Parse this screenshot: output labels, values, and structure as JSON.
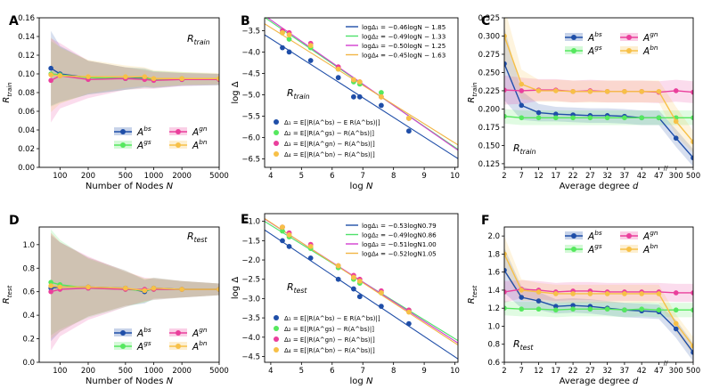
{
  "figure": {
    "title": "Six-panel comparison of R_train / R_test and log-Delta scaling"
  },
  "colors": {
    "bs": "#1f4ea8",
    "gs": "#55e85e",
    "gn": "#ea3f9c",
    "bn": "#f7c047",
    "fit1": "#1f4ea8",
    "fit2": "#4fe06b",
    "fit3": "#d23fd0",
    "fit4": "#f2b545"
  },
  "chart_data": [
    {
      "id": "A",
      "letter": "A",
      "type": "line",
      "title_label": "R",
      "title_sub": "train",
      "xlabel": "Number of Nodes N",
      "ylabel": "R",
      "ylabel_sub": "train",
      "xscale": "log",
      "xlim": [
        60,
        5000
      ],
      "ylim": [
        0,
        0.16
      ],
      "xticks": [
        100,
        200,
        500,
        1000,
        2000,
        5000
      ],
      "xtick_labels": [
        "100",
        "200",
        "500",
        "1000",
        "2000",
        "5000"
      ],
      "yticks": [
        0,
        0.02,
        0.04,
        0.06,
        0.08,
        0.1,
        0.12,
        0.14,
        0.16
      ],
      "ytick_labels": [
        "0.00",
        "0.02",
        "0.04",
        "0.06",
        "0.08",
        "0.10",
        "0.12",
        "0.14",
        "0.16"
      ],
      "x": [
        80,
        100,
        200,
        500,
        800,
        1000,
        2000,
        5000
      ],
      "series": [
        {
          "key": "bs",
          "name": "A",
          "sup": "bs",
          "values": [
            0.106,
            0.1,
            0.096,
            0.095,
            0.096,
            0.094,
            0.094,
            0.094
          ],
          "band": [
            0.04,
            0.03,
            0.018,
            0.012,
            0.01,
            0.009,
            0.007,
            0.006
          ]
        },
        {
          "key": "gs",
          "name": "A",
          "sup": "gs",
          "values": [
            0.1,
            0.099,
            0.096,
            0.095,
            0.095,
            0.094,
            0.095,
            0.094
          ],
          "band": [
            0.035,
            0.03,
            0.018,
            0.012,
            0.01,
            0.009,
            0.007,
            0.006
          ]
        },
        {
          "key": "gn",
          "name": "A",
          "sup": "gn",
          "values": [
            0.093,
            0.098,
            0.094,
            0.095,
            0.094,
            0.093,
            0.094,
            0.094
          ],
          "band": [
            0.045,
            0.035,
            0.02,
            0.012,
            0.01,
            0.009,
            0.007,
            0.006
          ]
        },
        {
          "key": "bn",
          "name": "A",
          "sup": "bn",
          "values": [
            0.099,
            0.098,
            0.097,
            0.097,
            0.097,
            0.095,
            0.095,
            0.095
          ],
          "band": [
            0.04,
            0.03,
            0.018,
            0.012,
            0.01,
            0.009,
            0.007,
            0.006
          ]
        }
      ],
      "legend_position": "bottom-right"
    },
    {
      "id": "B",
      "letter": "B",
      "type": "scatter",
      "title_label": "R",
      "title_sub": "train",
      "xlabel": "log N",
      "ylabel": "log Δ",
      "xlim": [
        3.8,
        10.1
      ],
      "ylim": [
        -6.7,
        -3.2
      ],
      "xticks": [
        4,
        5,
        6,
        7,
        8,
        9,
        10
      ],
      "xtick_labels": [
        "4",
        "5",
        "6",
        "7",
        "8",
        "9",
        "10"
      ],
      "yticks": [
        -6.5,
        -6,
        -5.5,
        -5,
        -4.5,
        -4,
        -3.5
      ],
      "ytick_labels": [
        "−6.5",
        "−6.0",
        "−5.5",
        "−5.0",
        "−4.5",
        "−4.0",
        "−3.5"
      ],
      "fits": [
        {
          "key": "fit1",
          "label": "logΔ₁ = −0.46logN − 1.85",
          "slope": -0.46,
          "intercept": -1.85
        },
        {
          "key": "fit2",
          "label": "logΔ₂ = −0.49logN − 1.33",
          "slope": -0.49,
          "intercept": -1.33
        },
        {
          "key": "fit3",
          "label": "logΔ₃ = −0.50logN − 1.25",
          "slope": -0.5,
          "intercept": -1.25
        },
        {
          "key": "fit4",
          "label": "logΔ₄ = −0.45logN − 1.63",
          "slope": -0.45,
          "intercept": -1.63
        }
      ],
      "points": [
        {
          "key": "bs",
          "label": "Δ₁ = E[|R(A^bs) − E R(A^bs)|]",
          "x": [
            4.38,
            4.6,
            5.3,
            6.2,
            6.7,
            6.9,
            7.6,
            8.5
          ],
          "y": [
            -3.9,
            -4.0,
            -4.2,
            -4.6,
            -5.05,
            -5.05,
            -5.25,
            -5.85
          ]
        },
        {
          "key": "gs",
          "label": "Δ₂ = E[|R(A^gs) − R(A^bs)|]",
          "x": [
            4.38,
            4.6,
            5.3,
            6.2,
            6.7,
            6.9,
            7.6,
            8.5
          ],
          "y": [
            -3.55,
            -3.7,
            -3.9,
            -4.4,
            -4.7,
            -4.75,
            -4.95,
            -5.55
          ]
        },
        {
          "key": "gn",
          "label": "Δ₃ = E[|R(A^gn) − R(A^bs)|]",
          "x": [
            4.38,
            4.6,
            5.3,
            6.2,
            6.7,
            6.9,
            7.6,
            8.5
          ],
          "y": [
            -3.5,
            -3.55,
            -3.8,
            -4.35,
            -4.65,
            -4.7,
            -5.05,
            -5.55
          ]
        },
        {
          "key": "bn",
          "label": "Δ₄ = E[|R(A^bn) − R(A^bs)|]",
          "x": [
            4.38,
            4.6,
            5.3,
            6.2,
            6.7,
            6.9,
            7.6,
            8.5
          ],
          "y": [
            -3.55,
            -3.6,
            -3.85,
            -4.4,
            -4.65,
            -4.7,
            -5.05,
            -5.55
          ]
        }
      ]
    },
    {
      "id": "C",
      "letter": "C",
      "type": "line",
      "title_label": "R",
      "title_sub": "train",
      "xlabel": "Average degree d",
      "ylabel": "R",
      "ylabel_sub": "train",
      "xscale": "categorical",
      "categories": [
        "2",
        "7",
        "12",
        "17",
        "22",
        "27",
        "32",
        "37",
        "42",
        "47",
        "300",
        "500"
      ],
      "ylim": [
        0.12,
        0.325
      ],
      "yticks": [
        0.125,
        0.15,
        0.175,
        0.2,
        0.225,
        0.25,
        0.275,
        0.3,
        0.325
      ],
      "ytick_labels": [
        "0.125",
        "0.150",
        "0.175",
        "0.200",
        "0.225",
        "0.250",
        "0.275",
        "0.300",
        "0.325"
      ],
      "series": [
        {
          "key": "bs",
          "name": "A",
          "sup": "bs",
          "values": [
            0.262,
            0.205,
            0.195,
            0.193,
            0.192,
            0.191,
            0.191,
            0.19,
            0.188,
            0.188,
            0.16,
            0.133
          ],
          "band": [
            0.05,
            0.02,
            0.012,
            0.01,
            0.01,
            0.01,
            0.01,
            0.01,
            0.01,
            0.01,
            0.012,
            0.012
          ]
        },
        {
          "key": "gs",
          "name": "A",
          "sup": "gs",
          "values": [
            0.19,
            0.188,
            0.188,
            0.188,
            0.188,
            0.188,
            0.188,
            0.188,
            0.188,
            0.188,
            0.188,
            0.188
          ],
          "band": [
            0.01,
            0.01,
            0.01,
            0.01,
            0.01,
            0.01,
            0.01,
            0.01,
            0.01,
            0.01,
            0.01,
            0.01
          ]
        },
        {
          "key": "gn",
          "name": "A",
          "sup": "gn",
          "values": [
            0.226,
            0.225,
            0.226,
            0.226,
            0.224,
            0.225,
            0.224,
            0.224,
            0.224,
            0.223,
            0.225,
            0.223
          ],
          "band": [
            0.02,
            0.018,
            0.015,
            0.015,
            0.015,
            0.015,
            0.015,
            0.015,
            0.015,
            0.015,
            0.015,
            0.015
          ]
        },
        {
          "key": "bn",
          "name": "A",
          "sup": "bn",
          "values": [
            0.3,
            0.234,
            0.225,
            0.225,
            0.224,
            0.224,
            0.224,
            0.224,
            0.224,
            0.224,
            0.183,
            0.155
          ],
          "band": [
            0.04,
            0.02,
            0.015,
            0.015,
            0.015,
            0.015,
            0.015,
            0.015,
            0.015,
            0.015,
            0.02,
            0.015
          ]
        }
      ],
      "legend_position": "top"
    },
    {
      "id": "D",
      "letter": "D",
      "type": "line",
      "title_label": "R",
      "title_sub": "test",
      "xlabel": "Number of Nodes N",
      "ylabel": "R",
      "ylabel_sub": "test",
      "xscale": "log",
      "xlim": [
        60,
        5000
      ],
      "ylim": [
        0,
        1.15
      ],
      "xticks": [
        100,
        200,
        500,
        1000,
        2000,
        5000
      ],
      "xtick_labels": [
        "100",
        "200",
        "500",
        "1000",
        "2000",
        "5000"
      ],
      "yticks": [
        0,
        0.2,
        0.4,
        0.6,
        0.8,
        1.0
      ],
      "ytick_labels": [
        "0.0",
        "0.2",
        "0.4",
        "0.6",
        "0.8",
        "1.0"
      ],
      "x": [
        80,
        100,
        200,
        500,
        800,
        1000,
        2000,
        5000
      ],
      "series": [
        {
          "key": "bs",
          "name": "A",
          "sup": "bs",
          "values": [
            0.63,
            0.64,
            0.64,
            0.63,
            0.6,
            0.63,
            0.62,
            0.62
          ],
          "band": [
            0.45,
            0.38,
            0.25,
            0.15,
            0.1,
            0.09,
            0.07,
            0.05
          ]
        },
        {
          "key": "gs",
          "name": "A",
          "sup": "gs",
          "values": [
            0.68,
            0.66,
            0.63,
            0.62,
            0.61,
            0.62,
            0.62,
            0.62
          ],
          "band": [
            0.45,
            0.38,
            0.25,
            0.15,
            0.1,
            0.09,
            0.07,
            0.05
          ]
        },
        {
          "key": "gn",
          "name": "A",
          "sup": "gn",
          "values": [
            0.6,
            0.62,
            0.63,
            0.62,
            0.62,
            0.62,
            0.62,
            0.62
          ],
          "band": [
            0.5,
            0.4,
            0.27,
            0.15,
            0.1,
            0.09,
            0.07,
            0.05
          ]
        },
        {
          "key": "bn",
          "name": "A",
          "sup": "bn",
          "values": [
            0.65,
            0.64,
            0.64,
            0.63,
            0.61,
            0.63,
            0.62,
            0.62
          ],
          "band": [
            0.45,
            0.38,
            0.25,
            0.15,
            0.1,
            0.09,
            0.07,
            0.05
          ]
        }
      ],
      "legend_position": "bottom-right"
    },
    {
      "id": "E",
      "letter": "E",
      "type": "scatter",
      "title_label": "R",
      "title_sub": "test",
      "xlabel": "log N",
      "ylabel": "log Δ",
      "xlim": [
        3.8,
        10.1
      ],
      "ylim": [
        -4.65,
        -0.8
      ],
      "xticks": [
        4,
        5,
        6,
        7,
        8,
        9,
        10
      ],
      "xtick_labels": [
        "4",
        "5",
        "6",
        "7",
        "8",
        "9",
        "10"
      ],
      "yticks": [
        -4.5,
        -4,
        -3.5,
        -3,
        -2.5,
        -2,
        -1.5,
        -1
      ],
      "ytick_labels": [
        "−4.5",
        "−4.0",
        "−3.5",
        "−3.0",
        "−2.5",
        "−2.0",
        "−1.5",
        "−1.0"
      ],
      "fits": [
        {
          "key": "fit1",
          "label": "logΔ₁ = −0.53logN0.79",
          "slope": -0.53,
          "intercept": 0.79
        },
        {
          "key": "fit2",
          "label": "logΔ₂ = −0.49logN0.86",
          "slope": -0.49,
          "intercept": 0.86
        },
        {
          "key": "fit3",
          "label": "logΔ₃ = −0.51logN1.00",
          "slope": -0.51,
          "intercept": 1.0
        },
        {
          "key": "fit4",
          "label": "logΔ₄ = −0.52logN1.05",
          "slope": -0.52,
          "intercept": 1.05
        }
      ],
      "points": [
        {
          "key": "bs",
          "label": "Δ₁ = E[|R(A^bs) − E R(A^bs)|]",
          "x": [
            4.38,
            4.6,
            5.3,
            6.2,
            6.7,
            6.9,
            7.6,
            8.5
          ],
          "y": [
            -1.5,
            -1.65,
            -1.95,
            -2.5,
            -2.75,
            -2.95,
            -3.2,
            -3.65
          ]
        },
        {
          "key": "gs",
          "label": "Δ₂ = E[|R(A^gs) − R(A^bs)|]",
          "x": [
            4.38,
            4.6,
            5.3,
            6.2,
            6.7,
            6.9,
            7.6,
            8.5
          ],
          "y": [
            -1.25,
            -1.4,
            -1.7,
            -2.2,
            -2.5,
            -2.6,
            -2.85,
            -3.3
          ]
        },
        {
          "key": "gn",
          "label": "Δ₃ = E[|R(A^gn) − R(A^bs)|]",
          "x": [
            4.38,
            4.6,
            5.3,
            6.2,
            6.7,
            6.9,
            7.6,
            8.5
          ],
          "y": [
            -1.15,
            -1.3,
            -1.6,
            -2.15,
            -2.4,
            -2.5,
            -2.8,
            -3.3
          ]
        },
        {
          "key": "bn",
          "label": "Δ₄ = E[|R(A^bn) − R(A^bs)|]",
          "x": [
            4.38,
            4.6,
            5.3,
            6.2,
            6.7,
            6.9,
            7.6,
            8.5
          ],
          "y": [
            -1.15,
            -1.35,
            -1.65,
            -2.15,
            -2.45,
            -2.55,
            -2.85,
            -3.35
          ]
        }
      ]
    },
    {
      "id": "F",
      "letter": "F",
      "type": "line",
      "title_label": "R",
      "title_sub": "test",
      "xlabel": "Average degree d",
      "ylabel": "R",
      "ylabel_sub": "test",
      "xscale": "categorical",
      "categories": [
        "2",
        "7",
        "12",
        "17",
        "22",
        "27",
        "32",
        "37",
        "42",
        "47",
        "300",
        "500"
      ],
      "ylim": [
        0.6,
        2.1
      ],
      "yticks": [
        0.6,
        0.8,
        1.0,
        1.2,
        1.4,
        1.6,
        1.8,
        2.0
      ],
      "ytick_labels": [
        "0.6",
        "0.8",
        "1.0",
        "1.2",
        "1.4",
        "1.6",
        "1.8",
        "2.0"
      ],
      "series": [
        {
          "key": "bs",
          "name": "A",
          "sup": "bs",
          "values": [
            1.62,
            1.32,
            1.28,
            1.22,
            1.23,
            1.22,
            1.2,
            1.18,
            1.17,
            1.16,
            0.97,
            0.71
          ],
          "band": [
            0.25,
            0.12,
            0.1,
            0.08,
            0.08,
            0.08,
            0.08,
            0.08,
            0.08,
            0.08,
            0.1,
            0.1
          ]
        },
        {
          "key": "gs",
          "name": "A",
          "sup": "gs",
          "values": [
            1.2,
            1.19,
            1.19,
            1.18,
            1.19,
            1.19,
            1.19,
            1.18,
            1.19,
            1.18,
            1.18,
            1.18
          ],
          "band": [
            0.08,
            0.08,
            0.08,
            0.08,
            0.08,
            0.08,
            0.08,
            0.08,
            0.08,
            0.08,
            0.08,
            0.08
          ]
        },
        {
          "key": "gn",
          "name": "A",
          "sup": "gn",
          "values": [
            1.38,
            1.41,
            1.4,
            1.38,
            1.39,
            1.39,
            1.38,
            1.38,
            1.38,
            1.38,
            1.37,
            1.37
          ],
          "band": [
            0.12,
            0.1,
            0.1,
            0.1,
            0.1,
            0.1,
            0.1,
            0.1,
            0.1,
            0.1,
            0.1,
            0.1
          ]
        },
        {
          "key": "bn",
          "name": "A",
          "sup": "bn",
          "values": [
            1.8,
            1.4,
            1.38,
            1.36,
            1.36,
            1.36,
            1.36,
            1.36,
            1.36,
            1.36,
            1.03,
            0.78
          ],
          "band": [
            0.2,
            0.12,
            0.1,
            0.1,
            0.1,
            0.1,
            0.1,
            0.1,
            0.1,
            0.1,
            0.1,
            0.1
          ]
        }
      ],
      "legend_position": "top"
    }
  ]
}
